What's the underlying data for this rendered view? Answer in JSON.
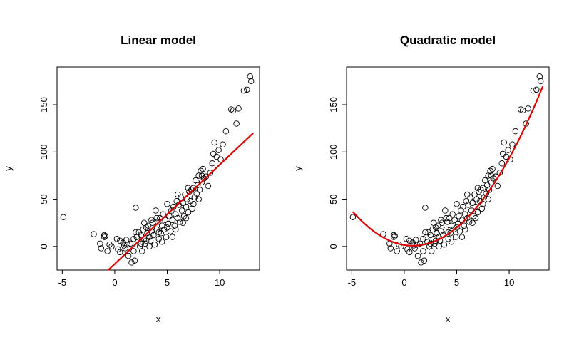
{
  "chart_data": [
    {
      "type": "scatter",
      "title": "Linear model",
      "xlabel": "x",
      "ylabel": "y",
      "xlim": [
        -5.5,
        13.8
      ],
      "ylim": [
        -25,
        190
      ],
      "xticks": [
        -5,
        0,
        5,
        10
      ],
      "yticks": [
        0,
        50,
        100,
        150
      ],
      "xtick_labels": [
        "-5",
        "0",
        "5",
        "10"
      ],
      "ytick_labels": [
        "0",
        "50",
        "100",
        "150"
      ],
      "grid": false,
      "fit": {
        "kind": "linear",
        "intercept": -18.5,
        "slope": 10.5,
        "x_range": [
          -0.8,
          13.2
        ],
        "color": "#e00000"
      }
    },
    {
      "type": "scatter",
      "title": "Quadratic model",
      "xlabel": "x",
      "ylabel": "y",
      "xlim": [
        -5.5,
        13.8
      ],
      "ylim": [
        -25,
        190
      ],
      "xticks": [
        -5,
        0,
        5,
        10
      ],
      "yticks": [
        0,
        50,
        100,
        150
      ],
      "xtick_labels": [
        "-5",
        "0",
        "5",
        "10"
      ],
      "ytick_labels": [
        "0",
        "50",
        "100",
        "150"
      ],
      "grid": false,
      "fit": {
        "kind": "quadratic",
        "coefficients": [
          1.5,
          -1.8,
          1.1
        ],
        "x_range": [
          -4.9,
          13.2
        ],
        "color": "#e00000"
      }
    }
  ],
  "points": [
    [
      -4.9,
      31
    ],
    [
      -2.0,
      13
    ],
    [
      -1.4,
      3
    ],
    [
      -1.3,
      -2
    ],
    [
      -1.0,
      12
    ],
    [
      -1.0,
      10
    ],
    [
      -0.9,
      11
    ],
    [
      -0.7,
      -5
    ],
    [
      -0.5,
      2
    ],
    [
      -0.3,
      0
    ],
    [
      0.2,
      8
    ],
    [
      0.3,
      -3
    ],
    [
      0.5,
      6
    ],
    [
      0.5,
      -6
    ],
    [
      0.8,
      4
    ],
    [
      0.9,
      1
    ],
    [
      1.0,
      -2
    ],
    [
      1.1,
      7
    ],
    [
      1.3,
      -10
    ],
    [
      1.5,
      3
    ],
    [
      1.6,
      -17
    ],
    [
      1.8,
      8
    ],
    [
      1.9,
      -15
    ],
    [
      2.0,
      41
    ],
    [
      2.1,
      10
    ],
    [
      2.2,
      5
    ],
    [
      2.3,
      15
    ],
    [
      2.4,
      0
    ],
    [
      2.5,
      12
    ],
    [
      2.6,
      -5
    ],
    [
      2.7,
      18
    ],
    [
      2.8,
      8
    ],
    [
      2.9,
      3
    ],
    [
      3.0,
      20
    ],
    [
      3.1,
      14
    ],
    [
      3.2,
      22
    ],
    [
      3.3,
      10
    ],
    [
      3.4,
      6
    ],
    [
      3.5,
      16
    ],
    [
      3.6,
      25
    ],
    [
      3.7,
      12
    ],
    [
      3.8,
      2
    ],
    [
      3.9,
      38
    ],
    [
      4.0,
      18
    ],
    [
      4.1,
      26
    ],
    [
      4.2,
      8
    ],
    [
      4.3,
      30
    ],
    [
      4.4,
      14
    ],
    [
      4.5,
      22
    ],
    [
      4.6,
      34
    ],
    [
      4.7,
      18
    ],
    [
      4.8,
      28
    ],
    [
      4.9,
      10
    ],
    [
      5.0,
      45
    ],
    [
      5.1,
      24
    ],
    [
      5.2,
      32
    ],
    [
      5.3,
      16
    ],
    [
      5.4,
      38
    ],
    [
      5.5,
      28
    ],
    [
      5.6,
      42
    ],
    [
      5.7,
      22
    ],
    [
      5.8,
      34
    ],
    [
      5.9,
      48
    ],
    [
      6.0,
      30
    ],
    [
      6.1,
      44
    ],
    [
      6.2,
      26
    ],
    [
      6.3,
      52
    ],
    [
      6.4,
      38
    ],
    [
      6.5,
      46
    ],
    [
      6.6,
      32
    ],
    [
      6.7,
      55
    ],
    [
      6.8,
      42
    ],
    [
      6.9,
      50
    ],
    [
      7.0,
      36
    ],
    [
      7.1,
      58
    ],
    [
      7.2,
      48
    ],
    [
      7.3,
      60
    ],
    [
      7.4,
      40
    ],
    [
      7.5,
      62
    ],
    [
      7.6,
      52
    ],
    [
      7.7,
      70
    ],
    [
      7.8,
      56
    ],
    [
      7.9,
      65
    ],
    [
      8.0,
      75
    ],
    [
      8.1,
      60
    ],
    [
      8.2,
      80
    ],
    [
      8.3,
      68
    ],
    [
      8.4,
      82
    ],
    [
      8.5,
      72
    ],
    [
      8.7,
      74
    ],
    [
      8.9,
      64
    ],
    [
      9.1,
      78
    ],
    [
      9.3,
      88
    ],
    [
      9.4,
      98
    ],
    [
      9.5,
      110
    ],
    [
      9.7,
      95
    ],
    [
      9.9,
      102
    ],
    [
      10.1,
      92
    ],
    [
      10.3,
      108
    ],
    [
      10.6,
      122
    ],
    [
      11.1,
      145
    ],
    [
      11.3,
      144
    ],
    [
      11.6,
      130
    ],
    [
      11.8,
      146
    ],
    [
      12.3,
      165
    ],
    [
      12.6,
      166
    ],
    [
      12.9,
      180
    ],
    [
      13.0,
      175
    ],
    [
      2.0,
      15
    ],
    [
      2.5,
      3
    ],
    [
      3.0,
      6
    ],
    [
      3.5,
      28
    ],
    [
      4.0,
      30
    ],
    [
      4.5,
      5
    ],
    [
      5.0,
      20
    ],
    [
      5.5,
      10
    ],
    [
      6.0,
      55
    ],
    [
      6.5,
      25
    ],
    [
      7.0,
      62
    ],
    [
      7.5,
      45
    ],
    [
      8.0,
      50
    ],
    [
      1.2,
      2
    ],
    [
      1.8,
      -5
    ],
    [
      2.8,
      25
    ],
    [
      3.3,
      0
    ],
    [
      4.2,
      15
    ],
    [
      5.8,
      18
    ],
    [
      6.8,
      30
    ],
    [
      8.3,
      75
    ]
  ]
}
